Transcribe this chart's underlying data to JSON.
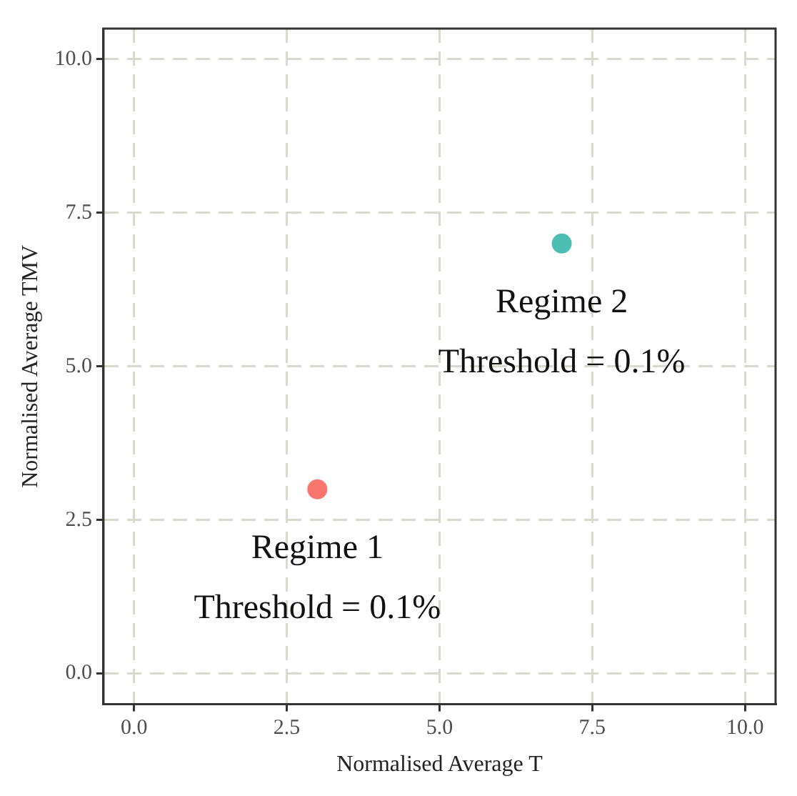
{
  "chart_data": {
    "type": "scatter",
    "xlabel": "Normalised Average T",
    "ylabel": "Normalised Average TMV",
    "x": [
      3,
      7
    ],
    "values": [
      3,
      7
    ],
    "colors": [
      "#f8766d",
      "#4cbfb2"
    ],
    "xlim": [
      -0.5,
      10.5
    ],
    "ylim": [
      -0.5,
      10.5
    ],
    "xticks": [
      {
        "value": 0,
        "label": "0.0"
      },
      {
        "value": 2.5,
        "label": "2.5"
      },
      {
        "value": 5,
        "label": "5.0"
      },
      {
        "value": 7.5,
        "label": "7.5"
      },
      {
        "value": 10,
        "label": "10.0"
      }
    ],
    "yticks": [
      {
        "value": 0,
        "label": "0.0"
      },
      {
        "value": 2.5,
        "label": "2.5"
      },
      {
        "value": 5,
        "label": "5.0"
      },
      {
        "value": 7.5,
        "label": "7.5"
      },
      {
        "value": 10,
        "label": "10.0"
      }
    ],
    "grid": true,
    "marker": "circle",
    "legend": false,
    "annotations": [
      "Regime 1",
      "Threshold = 0.1%",
      "Regime 2",
      "Threshold = 0.1%"
    ]
  }
}
